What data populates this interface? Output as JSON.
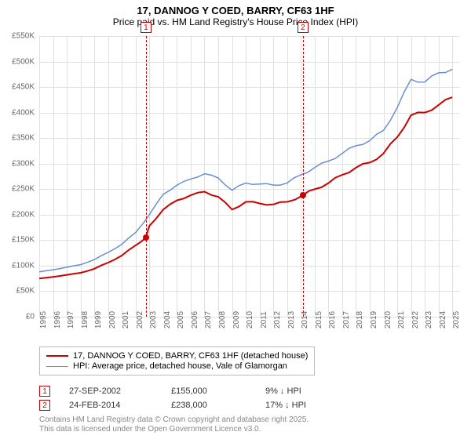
{
  "title": {
    "line1": "17, DANNOG Y COED, BARRY, CF63 1HF",
    "line2": "Price paid vs. HM Land Registry's House Price Index (HPI)"
  },
  "chart": {
    "type": "line",
    "background_color": "#ffffff",
    "grid_color": "#e0e0e0",
    "xlim": [
      1995,
      2025.5
    ],
    "ylim": [
      0,
      550000
    ],
    "ytick_step": 50000,
    "ytick_prefix": "£",
    "ytick_suffix": "K",
    "xtick_step": 1,
    "label_fontsize": 10,
    "label_color": "#666666",
    "series": [
      {
        "name": "price_paid",
        "label": "17, DANNOG Y COED, BARRY, CF63 1HF (detached house)",
        "color": "#cc0000",
        "line_width": 2,
        "x": [
          1995,
          1996,
          1997,
          1998,
          1999,
          2000,
          2001,
          2002,
          2002.75,
          2003,
          2004,
          2005,
          2006,
          2007,
          2008,
          2009,
          2010,
          2011,
          2012,
          2013,
          2014.15,
          2015,
          2016,
          2017,
          2018,
          2019,
          2020,
          2021,
          2022,
          2023,
          2024,
          2025
        ],
        "y": [
          75000,
          78000,
          82000,
          86000,
          94000,
          106000,
          120000,
          140000,
          155000,
          178000,
          210000,
          228000,
          238000,
          245000,
          235000,
          210000,
          225000,
          222000,
          220000,
          225000,
          238000,
          250000,
          262000,
          278000,
          292000,
          302000,
          320000,
          352000,
          395000,
          400000,
          415000,
          430000
        ]
      },
      {
        "name": "hpi",
        "label": "HPI: Average price, detached house, Vale of Glamorgan",
        "color": "#6a8fd0",
        "line_width": 1.5,
        "x": [
          1995,
          1996,
          1997,
          1998,
          1999,
          2000,
          2001,
          2002,
          2003,
          2004,
          2005,
          2006,
          2007,
          2008,
          2009,
          2010,
          2011,
          2012,
          2013,
          2014,
          2015,
          2016,
          2017,
          2018,
          2019,
          2020,
          2021,
          2022,
          2023,
          2024,
          2025
        ],
        "y": [
          88000,
          92000,
          97000,
          102000,
          112000,
          126000,
          142000,
          165000,
          200000,
          240000,
          258000,
          270000,
          280000,
          272000,
          248000,
          262000,
          260000,
          258000,
          262000,
          278000,
          292000,
          305000,
          320000,
          335000,
          345000,
          365000,
          410000,
          465000,
          460000,
          478000,
          485000
        ]
      }
    ],
    "markers": [
      {
        "num": "1",
        "x": 2002.75,
        "y": 155000,
        "dot_color": "#cc0000"
      },
      {
        "num": "2",
        "x": 2014.15,
        "y": 238000,
        "dot_color": "#cc0000"
      }
    ]
  },
  "legend": {
    "items": [
      {
        "color": "#cc0000",
        "width": 2,
        "label_path": "chart.series.0.label"
      },
      {
        "color": "#6a8fd0",
        "width": 1.5,
        "label_path": "chart.series.1.label"
      }
    ]
  },
  "sales": [
    {
      "num": "1",
      "date": "27-SEP-2002",
      "price": "£155,000",
      "pct": "9% ↓ HPI"
    },
    {
      "num": "2",
      "date": "24-FEB-2014",
      "price": "£238,000",
      "pct": "17% ↓ HPI"
    }
  ],
  "attribution": {
    "line1": "Contains HM Land Registry data © Crown copyright and database right 2025.",
    "line2": "This data is licensed under the Open Government Licence v3.0."
  }
}
